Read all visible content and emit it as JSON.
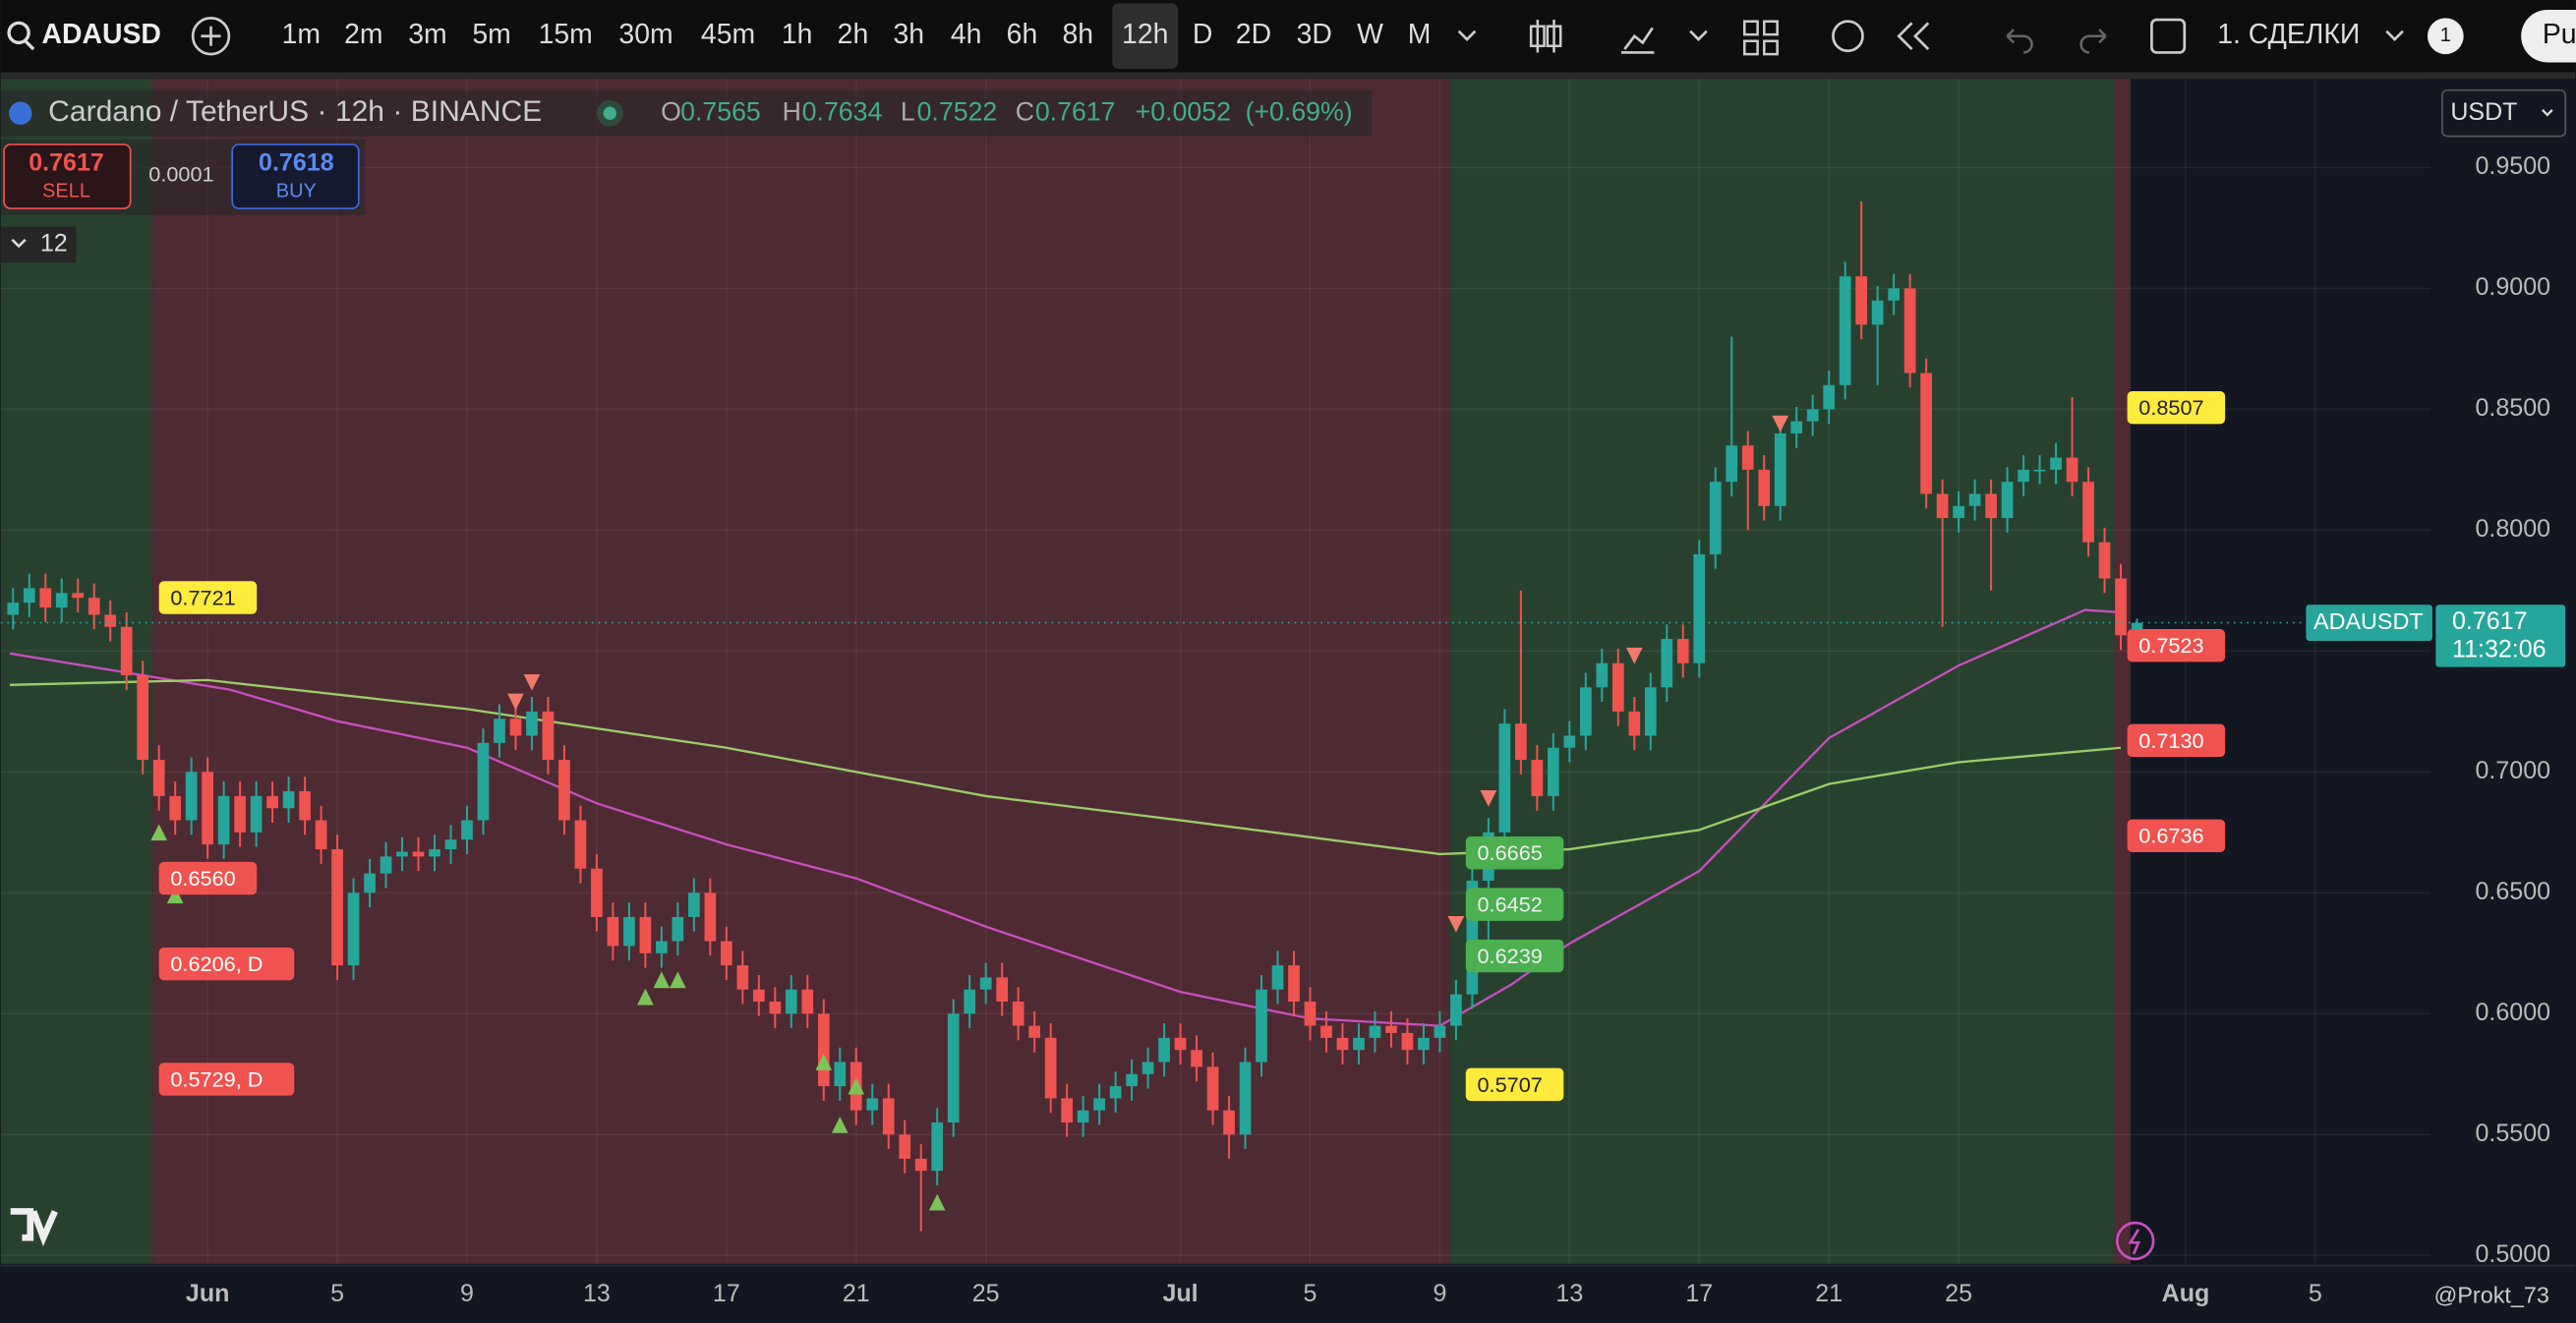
{
  "toolbar": {
    "symbol": "ADAUSD",
    "intervals": [
      "1m",
      "2m",
      "3m",
      "5m",
      "15m",
      "30m",
      "45m",
      "1h",
      "2h",
      "3h",
      "4h",
      "6h",
      "8h",
      "12h",
      "D",
      "2D",
      "3D",
      "W",
      "M"
    ],
    "active_interval": "12h",
    "layout": "1. СДЕЛКИ",
    "badge": "1",
    "publish": "Pu"
  },
  "legend": {
    "title": "Cardano / TetherUS · 12h · BINANCE",
    "o_label": "O",
    "o": 0.7565,
    "h_label": "H",
    "h": 0.7634,
    "l_label": "L",
    "l": 0.7522,
    "c_label": "C",
    "c": 0.7617,
    "change": "+0.0052",
    "change_pct": "(+0.69%)"
  },
  "trade": {
    "sell_price": 0.7617,
    "sell": "SELL",
    "spread": 0.0001,
    "buy_price": 0.7618,
    "buy": "BUY",
    "indicators": "12"
  },
  "currency": "USDT",
  "watermark": "@Prokt_73",
  "chart_data": {
    "type": "candlestick",
    "xlim": [
      -6.38,
      68.56
    ],
    "ylim": [
      0.4965,
      0.9867
    ],
    "xticks": [
      {
        "value": 0,
        "label": "Jun"
      },
      {
        "value": 4,
        "label": "5"
      },
      {
        "value": 8,
        "label": "9"
      },
      {
        "value": 12,
        "label": "13"
      },
      {
        "value": 16,
        "label": "17"
      },
      {
        "value": 20,
        "label": "21"
      },
      {
        "value": 24,
        "label": "25"
      },
      {
        "value": 30,
        "label": "Jul"
      },
      {
        "value": 34,
        "label": "5"
      },
      {
        "value": 38,
        "label": "9"
      },
      {
        "value": 42,
        "label": "13"
      },
      {
        "value": 46,
        "label": "17"
      },
      {
        "value": 50,
        "label": "21"
      },
      {
        "value": 54,
        "label": "25"
      },
      {
        "value": 61,
        "label": "Aug"
      },
      {
        "value": 65,
        "label": "5"
      }
    ],
    "yticks": [
      {
        "value": 0.95,
        "label": "0.9500"
      },
      {
        "value": 0.9,
        "label": "0.9000"
      },
      {
        "value": 0.85,
        "label": "0.8500"
      },
      {
        "value": 0.8,
        "label": "0.8000"
      },
      {
        "value": 0.75,
        "label": "0.7500"
      },
      {
        "value": 0.7,
        "label": "0.7000"
      },
      {
        "value": 0.65,
        "label": "0.6500"
      },
      {
        "value": 0.6,
        "label": "0.6000"
      },
      {
        "value": 0.55,
        "label": "0.5500"
      },
      {
        "value": 0.5,
        "label": "0.5000"
      }
    ],
    "grid": true,
    "up_color": "#26a69a",
    "down_color": "#ef5350",
    "zones": [
      {
        "from": -6.38,
        "to": -1.7,
        "color": "#28412f"
      },
      {
        "from": -1.7,
        "to": 38.3,
        "color": "#4e2a33"
      },
      {
        "from": 38.3,
        "to": 58.8,
        "color": "#28412f"
      },
      {
        "from": 58.8,
        "to": 59.3,
        "color": "#4e2a33"
      }
    ],
    "x": [
      -6,
      -5.5,
      -5,
      -4.5,
      -4,
      -3.5,
      -3,
      -2.5,
      -2,
      -1.5,
      -1,
      -0.5,
      0,
      0.5,
      1,
      1.5,
      2,
      2.5,
      3,
      3.5,
      4,
      4.5,
      5,
      5.5,
      6,
      6.5,
      7,
      7.5,
      8,
      8.5,
      9,
      9.5,
      10,
      10.5,
      11,
      11.5,
      12,
      12.5,
      13,
      13.5,
      14,
      14.5,
      15,
      15.5,
      16,
      16.5,
      17,
      17.5,
      18,
      18.5,
      19,
      19.5,
      20,
      20.5,
      21,
      21.5,
      22,
      22.5,
      23,
      23.5,
      24,
      24.5,
      25,
      25.5,
      26,
      26.5,
      27,
      27.5,
      28,
      28.5,
      29,
      29.5,
      30,
      30.5,
      31,
      31.5,
      32,
      32.5,
      33,
      33.5,
      34,
      34.5,
      35,
      35.5,
      36,
      36.5,
      37,
      37.5,
      38,
      38.5,
      39,
      39.5,
      40,
      40.5,
      41,
      41.5,
      42,
      42.5,
      43,
      43.5,
      44,
      44.5,
      45,
      45.5,
      46,
      46.5,
      47,
      47.5,
      48,
      48.5,
      49,
      49.5,
      50,
      50.5,
      51,
      51.5,
      52,
      52.5,
      53,
      53.5,
      54,
      54.5,
      55,
      55.5,
      56,
      56.5,
      57,
      57.5,
      58,
      58.5,
      59,
      59.5
    ],
    "ohlc": [
      [
        0.765,
        0.776,
        0.759,
        0.77
      ],
      [
        0.77,
        0.782,
        0.764,
        0.776
      ],
      [
        0.776,
        0.782,
        0.762,
        0.768
      ],
      [
        0.768,
        0.78,
        0.762,
        0.774
      ],
      [
        0.774,
        0.78,
        0.766,
        0.772
      ],
      [
        0.772,
        0.778,
        0.759,
        0.765
      ],
      [
        0.765,
        0.771,
        0.754,
        0.76
      ],
      [
        0.76,
        0.766,
        0.734,
        0.74
      ],
      [
        0.74,
        0.746,
        0.699,
        0.705
      ],
      [
        0.705,
        0.711,
        0.684,
        0.69
      ],
      [
        0.69,
        0.696,
        0.674,
        0.68
      ],
      [
        0.68,
        0.706,
        0.674,
        0.7
      ],
      [
        0.7,
        0.706,
        0.664,
        0.67
      ],
      [
        0.67,
        0.696,
        0.664,
        0.69
      ],
      [
        0.69,
        0.696,
        0.669,
        0.675
      ],
      [
        0.675,
        0.696,
        0.669,
        0.69
      ],
      [
        0.69,
        0.696,
        0.679,
        0.685
      ],
      [
        0.685,
        0.698,
        0.679,
        0.692
      ],
      [
        0.692,
        0.698,
        0.674,
        0.68
      ],
      [
        0.68,
        0.686,
        0.662,
        0.668
      ],
      [
        0.668,
        0.674,
        0.614,
        0.62
      ],
      [
        0.62,
        0.656,
        0.614,
        0.65
      ],
      [
        0.65,
        0.664,
        0.644,
        0.658
      ],
      [
        0.658,
        0.671,
        0.652,
        0.665
      ],
      [
        0.665,
        0.673,
        0.659,
        0.667
      ],
      [
        0.667,
        0.673,
        0.659,
        0.665
      ],
      [
        0.665,
        0.674,
        0.659,
        0.668
      ],
      [
        0.668,
        0.678,
        0.662,
        0.672
      ],
      [
        0.672,
        0.686,
        0.666,
        0.68
      ],
      [
        0.68,
        0.718,
        0.674,
        0.712
      ],
      [
        0.712,
        0.728,
        0.706,
        0.722
      ],
      [
        0.722,
        0.728,
        0.709,
        0.715
      ],
      [
        0.715,
        0.731,
        0.709,
        0.725
      ],
      [
        0.725,
        0.731,
        0.699,
        0.705
      ],
      [
        0.705,
        0.711,
        0.674,
        0.68
      ],
      [
        0.68,
        0.686,
        0.654,
        0.66
      ],
      [
        0.66,
        0.666,
        0.634,
        0.64
      ],
      [
        0.64,
        0.646,
        0.622,
        0.628
      ],
      [
        0.628,
        0.646,
        0.622,
        0.64
      ],
      [
        0.64,
        0.646,
        0.619,
        0.625
      ],
      [
        0.625,
        0.636,
        0.619,
        0.63
      ],
      [
        0.63,
        0.646,
        0.624,
        0.64
      ],
      [
        0.64,
        0.656,
        0.634,
        0.65
      ],
      [
        0.65,
        0.656,
        0.624,
        0.63
      ],
      [
        0.63,
        0.636,
        0.614,
        0.62
      ],
      [
        0.62,
        0.626,
        0.604,
        0.61
      ],
      [
        0.61,
        0.616,
        0.599,
        0.605
      ],
      [
        0.605,
        0.611,
        0.594,
        0.6
      ],
      [
        0.6,
        0.616,
        0.594,
        0.61
      ],
      [
        0.61,
        0.616,
        0.594,
        0.6
      ],
      [
        0.6,
        0.606,
        0.564,
        0.57
      ],
      [
        0.57,
        0.586,
        0.564,
        0.58
      ],
      [
        0.58,
        0.586,
        0.554,
        0.56
      ],
      [
        0.56,
        0.571,
        0.554,
        0.565
      ],
      [
        0.565,
        0.571,
        0.544,
        0.55
      ],
      [
        0.55,
        0.556,
        0.534,
        0.54
      ],
      [
        0.54,
        0.546,
        0.51,
        0.535
      ],
      [
        0.535,
        0.561,
        0.529,
        0.555
      ],
      [
        0.555,
        0.606,
        0.549,
        0.6
      ],
      [
        0.6,
        0.616,
        0.594,
        0.61
      ],
      [
        0.61,
        0.621,
        0.604,
        0.615
      ],
      [
        0.615,
        0.621,
        0.599,
        0.605
      ],
      [
        0.605,
        0.611,
        0.589,
        0.595
      ],
      [
        0.595,
        0.601,
        0.584,
        0.59
      ],
      [
        0.59,
        0.596,
        0.559,
        0.565
      ],
      [
        0.565,
        0.571,
        0.549,
        0.555
      ],
      [
        0.555,
        0.566,
        0.549,
        0.56
      ],
      [
        0.56,
        0.571,
        0.554,
        0.565
      ],
      [
        0.565,
        0.576,
        0.559,
        0.57
      ],
      [
        0.57,
        0.581,
        0.564,
        0.575
      ],
      [
        0.575,
        0.586,
        0.569,
        0.58
      ],
      [
        0.58,
        0.596,
        0.574,
        0.59
      ],
      [
        0.59,
        0.596,
        0.579,
        0.585
      ],
      [
        0.585,
        0.591,
        0.572,
        0.578
      ],
      [
        0.578,
        0.584,
        0.554,
        0.56
      ],
      [
        0.56,
        0.566,
        0.54,
        0.55
      ],
      [
        0.55,
        0.586,
        0.544,
        0.58
      ],
      [
        0.58,
        0.616,
        0.574,
        0.61
      ],
      [
        0.61,
        0.626,
        0.604,
        0.62
      ],
      [
        0.62,
        0.626,
        0.599,
        0.605
      ],
      [
        0.605,
        0.611,
        0.589,
        0.595
      ],
      [
        0.595,
        0.601,
        0.584,
        0.59
      ],
      [
        0.59,
        0.596,
        0.579,
        0.585
      ],
      [
        0.585,
        0.596,
        0.579,
        0.59
      ],
      [
        0.59,
        0.601,
        0.584,
        0.595
      ],
      [
        0.595,
        0.601,
        0.586,
        0.592
      ],
      [
        0.592,
        0.598,
        0.579,
        0.585
      ],
      [
        0.585,
        0.596,
        0.579,
        0.59
      ],
      [
        0.59,
        0.601,
        0.584,
        0.595
      ],
      [
        0.595,
        0.614,
        0.589,
        0.608
      ],
      [
        0.608,
        0.661,
        0.602,
        0.655
      ],
      [
        0.655,
        0.681,
        0.62,
        0.675
      ],
      [
        0.675,
        0.726,
        0.669,
        0.72
      ],
      [
        0.72,
        0.775,
        0.699,
        0.705
      ],
      [
        0.705,
        0.711,
        0.684,
        0.69
      ],
      [
        0.69,
        0.716,
        0.684,
        0.71
      ],
      [
        0.71,
        0.721,
        0.704,
        0.715
      ],
      [
        0.715,
        0.741,
        0.709,
        0.735
      ],
      [
        0.735,
        0.751,
        0.729,
        0.745
      ],
      [
        0.745,
        0.751,
        0.719,
        0.725
      ],
      [
        0.725,
        0.731,
        0.709,
        0.715
      ],
      [
        0.715,
        0.741,
        0.709,
        0.735
      ],
      [
        0.735,
        0.761,
        0.729,
        0.755
      ],
      [
        0.755,
        0.761,
        0.739,
        0.745
      ],
      [
        0.745,
        0.796,
        0.739,
        0.79
      ],
      [
        0.79,
        0.826,
        0.784,
        0.82
      ],
      [
        0.82,
        0.88,
        0.814,
        0.835
      ],
      [
        0.835,
        0.841,
        0.8,
        0.825
      ],
      [
        0.825,
        0.831,
        0.804,
        0.81
      ],
      [
        0.81,
        0.846,
        0.804,
        0.84
      ],
      [
        0.84,
        0.851,
        0.834,
        0.845
      ],
      [
        0.845,
        0.856,
        0.839,
        0.85
      ],
      [
        0.85,
        0.866,
        0.844,
        0.86
      ],
      [
        0.86,
        0.911,
        0.854,
        0.905
      ],
      [
        0.905,
        0.936,
        0.879,
        0.885
      ],
      [
        0.885,
        0.901,
        0.86,
        0.895
      ],
      [
        0.895,
        0.906,
        0.889,
        0.9
      ],
      [
        0.9,
        0.906,
        0.859,
        0.865
      ],
      [
        0.865,
        0.871,
        0.809,
        0.815
      ],
      [
        0.815,
        0.821,
        0.76,
        0.805
      ],
      [
        0.805,
        0.816,
        0.799,
        0.81
      ],
      [
        0.81,
        0.821,
        0.804,
        0.815
      ],
      [
        0.815,
        0.821,
        0.775,
        0.805
      ],
      [
        0.805,
        0.826,
        0.799,
        0.82
      ],
      [
        0.82,
        0.831,
        0.814,
        0.825
      ],
      [
        0.825,
        0.831,
        0.819,
        0.825
      ],
      [
        0.825,
        0.836,
        0.819,
        0.83
      ],
      [
        0.83,
        0.855,
        0.814,
        0.82
      ],
      [
        0.82,
        0.826,
        0.789,
        0.795
      ],
      [
        0.795,
        0.801,
        0.774,
        0.78
      ],
      [
        0.78,
        0.786,
        0.7505,
        0.7565
      ],
      [
        0.7565,
        0.7634,
        0.7522,
        0.7617
      ]
    ],
    "ma_lines": [
      {
        "color": "#c84fc0",
        "x": [
          -6.1,
          0.7,
          4,
          8,
          12,
          16,
          20,
          24,
          30,
          34,
          38,
          40.2,
          42,
          46,
          50,
          54,
          57.9,
          59
        ],
        "values": [
          0.749,
          0.734,
          0.721,
          0.71,
          0.687,
          0.67,
          0.656,
          0.636,
          0.609,
          0.598,
          0.595,
          0.612,
          0.629,
          0.659,
          0.714,
          0.744,
          0.767,
          0.766
        ]
      },
      {
        "color": "#9ccc65",
        "x": [
          -6.1,
          0,
          8,
          16,
          24,
          30,
          38,
          42,
          46,
          50,
          54,
          59
        ],
        "values": [
          0.736,
          0.738,
          0.726,
          0.71,
          0.69,
          0.68,
          0.666,
          0.668,
          0.676,
          0.695,
          0.704,
          0.71
        ]
      }
    ],
    "signals": [
      {
        "x": 9.5,
        "value": 0.729,
        "dir": "down"
      },
      {
        "x": 10,
        "value": 0.737,
        "dir": "down"
      },
      {
        "x": -1.5,
        "value": 0.675,
        "dir": "up"
      },
      {
        "x": -1,
        "value": 0.649,
        "dir": "up"
      },
      {
        "x": 13.5,
        "value": 0.607,
        "dir": "up"
      },
      {
        "x": 14,
        "value": 0.614,
        "dir": "up"
      },
      {
        "x": 14.5,
        "value": 0.614,
        "dir": "up"
      },
      {
        "x": 19,
        "value": 0.58,
        "dir": "up"
      },
      {
        "x": 20,
        "value": 0.57,
        "dir": "up"
      },
      {
        "x": 19.5,
        "value": 0.554,
        "dir": "up"
      },
      {
        "x": 22.5,
        "value": 0.522,
        "dir": "up"
      },
      {
        "x": 38.5,
        "value": 0.637,
        "dir": "down"
      },
      {
        "x": 39.5,
        "value": 0.689,
        "dir": "down"
      },
      {
        "x": 44,
        "value": 0.748,
        "dir": "down"
      },
      {
        "x": 48.5,
        "value": 0.844,
        "dir": "down"
      }
    ],
    "annotations": [
      {
        "label": "0.7721",
        "value": 0.7721,
        "x": -1.5,
        "color": "#ffeb3b",
        "text_color": "#222"
      },
      {
        "label": "0.6560",
        "value": 0.656,
        "x": -1.5,
        "color": "#f0534f",
        "text_color": "#fff"
      },
      {
        "label": "0.6206, D",
        "value": 0.6206,
        "x": -1.5,
        "color": "#f0534f",
        "text_color": "#fff"
      },
      {
        "label": "0.5729, D",
        "value": 0.5729,
        "x": -1.5,
        "color": "#f0534f",
        "text_color": "#fff"
      },
      {
        "label": "0.5707",
        "value": 0.5707,
        "x": 38.8,
        "color": "#ffeb3b",
        "text_color": "#222"
      },
      {
        "label": "0.6665",
        "value": 0.6665,
        "x": 38.8,
        "color": "#4caf50",
        "text_color": "#eee"
      },
      {
        "label": "0.6452",
        "value": 0.6452,
        "x": 38.8,
        "color": "#4caf50",
        "text_color": "#eee"
      },
      {
        "label": "0.6239",
        "value": 0.6239,
        "x": 38.8,
        "color": "#4caf50",
        "text_color": "#eee"
      },
      {
        "label": "0.8507",
        "value": 0.8507,
        "x": 59.2,
        "color": "#ffeb3b",
        "text_color": "#222"
      },
      {
        "label": "0.7523",
        "value": 0.7523,
        "x": 59.2,
        "color": "#f0534f",
        "text_color": "#fff"
      },
      {
        "label": "0.7130",
        "value": 0.713,
        "x": 59.2,
        "color": "#f0534f",
        "text_color": "#fff"
      },
      {
        "label": "0.6736",
        "value": 0.6736,
        "x": 59.2,
        "color": "#f0534f",
        "text_color": "#fff"
      }
    ],
    "last": {
      "name": "ADAUSDT",
      "price": 0.7617,
      "countdown": "11:32:06",
      "color": "#26a69a"
    }
  }
}
